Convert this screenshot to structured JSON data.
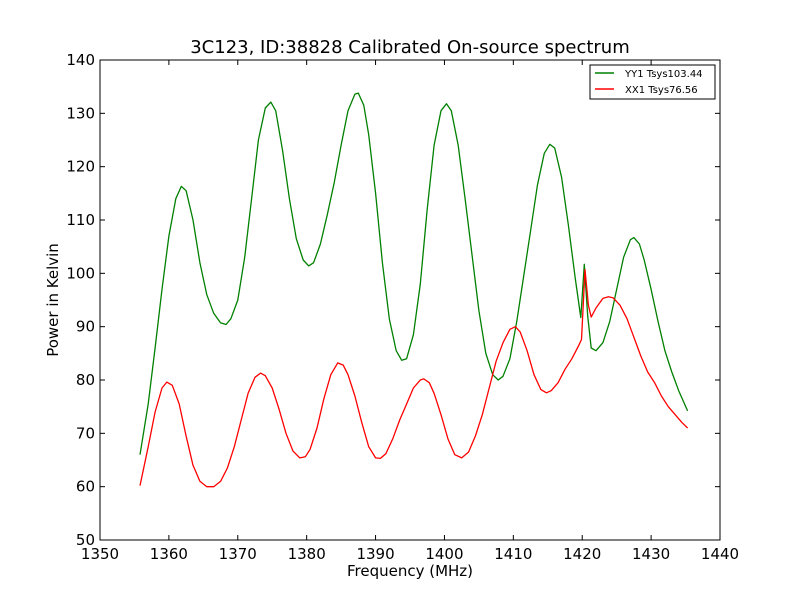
{
  "chart_data": {
    "type": "line",
    "title": "3C123, ID:38828 Calibrated On-source spectrum",
    "xlabel": "Frequency (MHz)",
    "ylabel": "Power in Kelvin",
    "xlim": [
      1350,
      1440
    ],
    "ylim": [
      50,
      140
    ],
    "xticks": [
      1350,
      1360,
      1370,
      1380,
      1390,
      1400,
      1410,
      1420,
      1430,
      1440
    ],
    "yticks": [
      50,
      60,
      70,
      80,
      90,
      100,
      110,
      120,
      130,
      140
    ],
    "grid": false,
    "legend_position": "top-right",
    "series": [
      {
        "name": "YY1 Tsys103.44",
        "color": "#008000",
        "points": [
          [
            1355.8,
            66.0
          ],
          [
            1357.0,
            75.5
          ],
          [
            1358.0,
            86.0
          ],
          [
            1359.0,
            97.0
          ],
          [
            1360.0,
            107.0
          ],
          [
            1361.0,
            114.0
          ],
          [
            1361.8,
            116.3
          ],
          [
            1362.5,
            115.5
          ],
          [
            1363.5,
            110.0
          ],
          [
            1364.5,
            102.0
          ],
          [
            1365.5,
            96.0
          ],
          [
            1366.5,
            92.5
          ],
          [
            1367.5,
            90.7
          ],
          [
            1368.3,
            90.4
          ],
          [
            1369.0,
            91.5
          ],
          [
            1370.0,
            95.0
          ],
          [
            1371.0,
            103.0
          ],
          [
            1372.0,
            114.0
          ],
          [
            1373.0,
            125.0
          ],
          [
            1374.0,
            131.0
          ],
          [
            1374.8,
            132.1
          ],
          [
            1375.5,
            130.5
          ],
          [
            1376.5,
            123.0
          ],
          [
            1377.5,
            114.0
          ],
          [
            1378.5,
            106.5
          ],
          [
            1379.5,
            102.5
          ],
          [
            1380.3,
            101.4
          ],
          [
            1381.0,
            102.0
          ],
          [
            1382.0,
            105.5
          ],
          [
            1383.0,
            111.0
          ],
          [
            1384.0,
            117.0
          ],
          [
            1385.0,
            124.0
          ],
          [
            1386.0,
            130.5
          ],
          [
            1387.0,
            133.6
          ],
          [
            1387.5,
            133.8
          ],
          [
            1388.3,
            131.5
          ],
          [
            1389.0,
            126.0
          ],
          [
            1390.0,
            115.0
          ],
          [
            1391.0,
            102.0
          ],
          [
            1392.0,
            91.5
          ],
          [
            1393.0,
            85.5
          ],
          [
            1393.8,
            83.7
          ],
          [
            1394.5,
            84.0
          ],
          [
            1395.5,
            88.5
          ],
          [
            1396.5,
            98.0
          ],
          [
            1397.5,
            112.0
          ],
          [
            1398.5,
            124.0
          ],
          [
            1399.5,
            130.5
          ],
          [
            1400.3,
            131.8
          ],
          [
            1401.0,
            130.5
          ],
          [
            1402.0,
            124.0
          ],
          [
            1403.0,
            114.0
          ],
          [
            1404.0,
            103.5
          ],
          [
            1405.0,
            93.0
          ],
          [
            1406.0,
            85.0
          ],
          [
            1407.0,
            81.0
          ],
          [
            1407.8,
            80.0
          ],
          [
            1408.5,
            80.7
          ],
          [
            1409.5,
            84.0
          ],
          [
            1410.5,
            91.0
          ],
          [
            1411.5,
            99.5
          ],
          [
            1412.5,
            108.0
          ],
          [
            1413.5,
            116.5
          ],
          [
            1414.5,
            122.5
          ],
          [
            1415.3,
            124.2
          ],
          [
            1416.0,
            123.5
          ],
          [
            1417.0,
            118.0
          ],
          [
            1418.0,
            109.0
          ],
          [
            1419.0,
            99.0
          ],
          [
            1419.8,
            91.7
          ],
          [
            1420.3,
            101.7
          ],
          [
            1420.8,
            92.0
          ],
          [
            1421.3,
            86.0
          ],
          [
            1422.0,
            85.5
          ],
          [
            1423.0,
            87.0
          ],
          [
            1424.0,
            91.0
          ],
          [
            1425.0,
            97.0
          ],
          [
            1426.0,
            103.0
          ],
          [
            1427.0,
            106.3
          ],
          [
            1427.5,
            106.7
          ],
          [
            1428.3,
            105.5
          ],
          [
            1429.0,
            102.5
          ],
          [
            1430.0,
            97.0
          ],
          [
            1431.0,
            91.0
          ],
          [
            1432.0,
            85.5
          ],
          [
            1433.0,
            81.5
          ],
          [
            1434.0,
            78.0
          ],
          [
            1435.3,
            74.2
          ]
        ]
      },
      {
        "name": "XX1 Tsys76.56",
        "color": "#ff0000",
        "points": [
          [
            1355.8,
            60.2
          ],
          [
            1357.0,
            67.5
          ],
          [
            1358.0,
            74.0
          ],
          [
            1359.0,
            78.5
          ],
          [
            1359.7,
            79.6
          ],
          [
            1360.5,
            79.0
          ],
          [
            1361.5,
            75.5
          ],
          [
            1362.5,
            69.5
          ],
          [
            1363.5,
            64.0
          ],
          [
            1364.5,
            61.0
          ],
          [
            1365.5,
            60.0
          ],
          [
            1366.5,
            60.0
          ],
          [
            1367.5,
            61.0
          ],
          [
            1368.5,
            63.5
          ],
          [
            1369.5,
            67.5
          ],
          [
            1370.5,
            72.5
          ],
          [
            1371.5,
            77.5
          ],
          [
            1372.5,
            80.5
          ],
          [
            1373.3,
            81.3
          ],
          [
            1374.0,
            80.8
          ],
          [
            1375.0,
            78.5
          ],
          [
            1376.0,
            74.5
          ],
          [
            1377.0,
            70.0
          ],
          [
            1378.0,
            66.7
          ],
          [
            1379.0,
            65.4
          ],
          [
            1379.8,
            65.6
          ],
          [
            1380.5,
            67.0
          ],
          [
            1381.5,
            71.0
          ],
          [
            1382.5,
            76.5
          ],
          [
            1383.5,
            81.0
          ],
          [
            1384.5,
            83.2
          ],
          [
            1385.3,
            82.8
          ],
          [
            1386.0,
            81.0
          ],
          [
            1387.0,
            77.0
          ],
          [
            1388.0,
            72.0
          ],
          [
            1389.0,
            67.5
          ],
          [
            1390.0,
            65.4
          ],
          [
            1390.7,
            65.3
          ],
          [
            1391.5,
            66.2
          ],
          [
            1392.5,
            69.0
          ],
          [
            1393.5,
            72.5
          ],
          [
            1394.5,
            75.5
          ],
          [
            1395.5,
            78.5
          ],
          [
            1396.5,
            80.0
          ],
          [
            1397.0,
            80.2
          ],
          [
            1397.8,
            79.5
          ],
          [
            1398.5,
            77.5
          ],
          [
            1399.5,
            73.5
          ],
          [
            1400.5,
            69.0
          ],
          [
            1401.5,
            66.0
          ],
          [
            1402.5,
            65.4
          ],
          [
            1403.5,
            66.5
          ],
          [
            1404.5,
            69.5
          ],
          [
            1405.5,
            73.5
          ],
          [
            1406.5,
            78.5
          ],
          [
            1407.5,
            83.5
          ],
          [
            1408.5,
            87.0
          ],
          [
            1409.5,
            89.5
          ],
          [
            1410.3,
            90.0
          ],
          [
            1411.0,
            89.0
          ],
          [
            1412.0,
            85.5
          ],
          [
            1413.0,
            81.0
          ],
          [
            1414.0,
            78.2
          ],
          [
            1414.8,
            77.6
          ],
          [
            1415.5,
            78.0
          ],
          [
            1416.5,
            79.5
          ],
          [
            1417.5,
            82.0
          ],
          [
            1418.5,
            84.0
          ],
          [
            1419.5,
            86.5
          ],
          [
            1419.9,
            87.6
          ],
          [
            1420.4,
            100.7
          ],
          [
            1420.9,
            94.0
          ],
          [
            1421.3,
            91.8
          ],
          [
            1422.0,
            93.5
          ],
          [
            1423.0,
            95.3
          ],
          [
            1423.8,
            95.6
          ],
          [
            1424.5,
            95.4
          ],
          [
            1425.5,
            94.0
          ],
          [
            1426.5,
            91.5
          ],
          [
            1427.5,
            88.0
          ],
          [
            1428.5,
            84.5
          ],
          [
            1429.5,
            81.5
          ],
          [
            1430.5,
            79.5
          ],
          [
            1431.5,
            77.0
          ],
          [
            1432.5,
            75.0
          ],
          [
            1433.5,
            73.5
          ],
          [
            1434.5,
            72.0
          ],
          [
            1435.3,
            71.0
          ]
        ]
      }
    ]
  }
}
